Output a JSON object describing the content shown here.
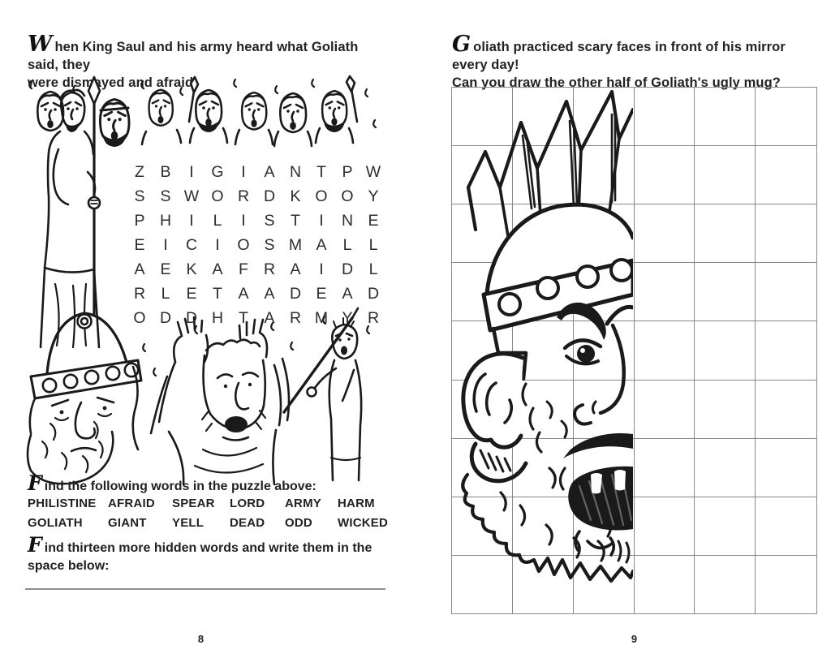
{
  "colors": {
    "ink": "#1a1a1a",
    "grid_line": "#8a8a8a",
    "paper": "#ffffff",
    "letter": "#2d2d2d"
  },
  "left_page": {
    "intro": {
      "dropcap": "W",
      "line1": "hen King Saul and his army heard what Goliath said, they",
      "line2": "were dismayed and afraid."
    },
    "word_search": {
      "rows": [
        "ZBIGIANTPW",
        "SSWORDKOOY",
        "PHILISTINE",
        "EICIOSMALL",
        "AEKAFRAIDL",
        "RLETAADEAD",
        "ODDHTARMYR"
      ]
    },
    "find_words": {
      "dropcap": "F",
      "text": "ind the following words in the puzzle above:"
    },
    "word_list": [
      [
        "PHILISTINE",
        "AFRAID",
        "SPEAR",
        "LORD",
        "ARMY",
        "HARM"
      ],
      [
        "GOLIATH",
        "GIANT",
        "YELL",
        "DEAD",
        "ODD",
        "WICKED"
      ]
    ],
    "find_more": {
      "dropcap": "F",
      "line1": "ind thirteen more hidden words and write them in the",
      "line2": "space below:"
    },
    "page_number": "8"
  },
  "right_page": {
    "intro": {
      "dropcap": "G",
      "line1": "oliath practiced scary faces in front of his mirror every day!",
      "line2": "Can you draw the other half of Goliath's ugly mug?"
    },
    "draw_grid": {
      "columns": 6,
      "rows": 9
    },
    "page_number": "9"
  }
}
